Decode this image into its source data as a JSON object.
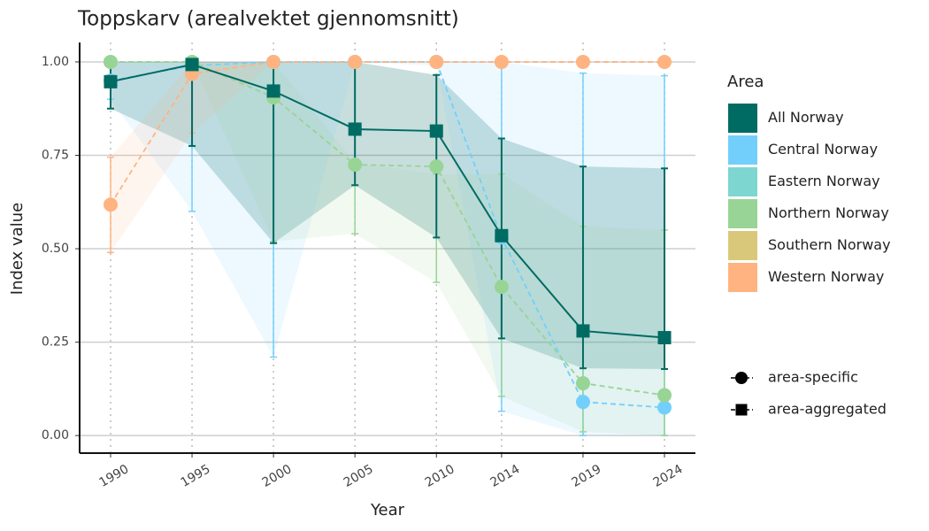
{
  "chart_data": {
    "type": "line",
    "title": "Toppskarv (arealvektet gjennomsnitt)",
    "x_label": "Year",
    "y_label": "Index value",
    "x": [
      1990,
      1995,
      2000,
      2005,
      2010,
      2014,
      2019,
      2024
    ],
    "xlim": [
      1988.1,
      2025.9
    ],
    "xticks": [
      1990,
      1995,
      2000,
      2005,
      2010,
      2014,
      2019,
      2024
    ],
    "ylim": [
      -0.047,
      1.052
    ],
    "yticks": [
      {
        "value": 0,
        "label": "0.00"
      },
      {
        "value": 0.25,
        "label": "0.25"
      },
      {
        "value": 0.5,
        "label": "0.50"
      },
      {
        "value": 0.75,
        "label": "0.75"
      },
      {
        "value": 1,
        "label": "1.00"
      }
    ],
    "grid": true,
    "legend_title": "Area",
    "series": [
      {
        "name": "All Norway",
        "color": "#006b63",
        "marker": "square",
        "dashed": false,
        "values": [
          0.947,
          0.993,
          0.922,
          0.82,
          0.815,
          0.535,
          0.28,
          0.262
        ],
        "lower": [
          0.875,
          0.775,
          0.515,
          0.67,
          0.53,
          0.26,
          0.18,
          0.178
        ],
        "upper": [
          1.0,
          1.0,
          1.0,
          1.0,
          0.965,
          0.795,
          0.72,
          0.715
        ]
      },
      {
        "name": "Central Norway",
        "color": "#72cffc",
        "marker": "circle",
        "dashed": true,
        "values": [
          0.95,
          0.99,
          1.0,
          1.0,
          1.0,
          0.53,
          0.09,
          0.075
        ],
        "lower": [
          0.9,
          0.6,
          0.21,
          1.0,
          0.99,
          0.065,
          0.0,
          0.0
        ],
        "upper": [
          1.0,
          1.0,
          1.0,
          1.0,
          1.0,
          1.0,
          0.97,
          0.963
        ]
      },
      {
        "name": "Eastern Norway",
        "color": "#7dd6cf",
        "marker": "circle",
        "dashed": true,
        "values": [
          null,
          null,
          null,
          null,
          null,
          null,
          null,
          null
        ],
        "lower": [
          null,
          null,
          null,
          null,
          null,
          null,
          null,
          null
        ],
        "upper": [
          null,
          null,
          null,
          null,
          null,
          null,
          null,
          null
        ]
      },
      {
        "name": "Northern Norway",
        "color": "#98d495",
        "marker": "circle",
        "dashed": true,
        "values": [
          1.0,
          1.0,
          0.905,
          0.725,
          0.72,
          0.398,
          0.14,
          0.108
        ],
        "lower": [
          1.0,
          1.0,
          0.52,
          0.54,
          0.41,
          0.105,
          0.01,
          0.0
        ],
        "upper": [
          1.0,
          1.0,
          1.0,
          0.73,
          0.7,
          0.7,
          0.56,
          0.55
        ]
      },
      {
        "name": "Southern Norway",
        "color": "#d9c879",
        "marker": "circle",
        "dashed": true,
        "values": [
          null,
          null,
          null,
          null,
          null,
          null,
          null,
          null
        ],
        "lower": [
          null,
          null,
          null,
          null,
          null,
          null,
          null,
          null
        ],
        "upper": [
          null,
          null,
          null,
          null,
          null,
          null,
          null,
          null
        ]
      },
      {
        "name": "Western Norway",
        "color": "#ffb380",
        "marker": "circle",
        "dashed": true,
        "values": [
          0.618,
          0.968,
          1.0,
          1.0,
          1.0,
          1.0,
          1.0,
          1.0
        ],
        "lower": [
          0.49,
          0.81,
          1.0,
          1.0,
          1.0,
          1.0,
          1.0,
          1.0
        ],
        "upper": [
          0.745,
          1.0,
          1.0,
          1.0,
          1.0,
          1.0,
          1.0,
          1.0
        ]
      }
    ],
    "shape_legend": [
      {
        "label": "area-specific",
        "marker": "circle"
      },
      {
        "label": "area-aggregated",
        "marker": "square"
      }
    ]
  }
}
